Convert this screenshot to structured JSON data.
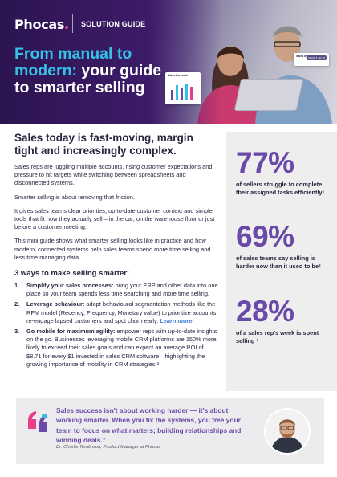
{
  "header": {
    "logo_text": "Phocas",
    "label": "SOLUTION GUIDE",
    "title_accent": "From manual to modern:",
    "title_rest": " your guide to smarter selling",
    "sales_card_title": "Sales Forecast",
    "month_card_label": "Sales by month",
    "month_card_pill": "Month ▾ Jan 25"
  },
  "main": {
    "heading": "Sales today is fast-moving, margin tight and increasingly complex.",
    "paragraphs": [
      "Sales reps are juggling multiple accounts, rising customer expectations and pressure to hit targets while switching between spreadsheets and disconnected systems.",
      "Smarter selling is about removing that friction.",
      "It gives sales teams clear priorities, up-to-date customer context and simple tools that fit how they actually sell – in the car, on the warehouse floor or just before a customer meeting.",
      "This mini guide shows what smarter selling looks like in practice and how modern, connected systems help sales teams spend more time selling and less time managing data."
    ],
    "steps_heading": "3 ways to make selling smarter:",
    "steps": [
      {
        "num": "1.",
        "title": "Simplify your sales processes:",
        "text": " bring your ERP and other data into one place so your team spends less time searching and more time selling."
      },
      {
        "num": "2.",
        "title": "Leverage behaviour:",
        "text": " adopt behavioural segmentation methods like the RFM model (Recency, Frequency, Monetary value) to prioritize accounts, re-engage lapsed customers and spot churn early. ",
        "link": "Learn more"
      },
      {
        "num": "3.",
        "title": "Go mobile for maximum agility:",
        "text": " empower reps with up-to-date insights on the go. Businesses leveraging mobile CRM platforms are 150% more likely to exceed their sales goals and can expect an average ROI of $8.71 for every $1 invested in sales CRM software—highlighting the growing importance of mobility in CRM strategies.³"
      }
    ]
  },
  "stats": [
    {
      "value": "77%",
      "label": "of sellers struggle to complete their assigned tasks efficiently¹"
    },
    {
      "value": "69%",
      "label": "of sales teams say selling is harder now than it used to be²"
    },
    {
      "value": "28%",
      "label": "of a sales rep's week is spent selling ³"
    }
  ],
  "quote": {
    "text": "Sales success isn't about working harder — it's about working smarter. When you fix the systems, you free your team to focus on what matters; building relationships and winning deals.”",
    "author": "Dr. Charlie Tomlinson, Product Manager at Phocas"
  },
  "colors": {
    "brand_purple": "#6a49a8",
    "hero_purple": "#3b1d63",
    "accent_cyan": "#35c0e6",
    "logo_dot": "#e83e8c"
  }
}
